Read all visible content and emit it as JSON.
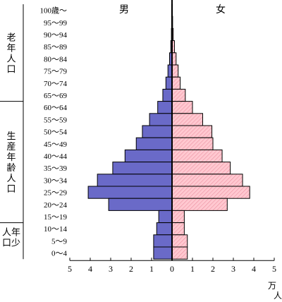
{
  "chart_data": {
    "type": "bar",
    "orientation": "horizontal-population-pyramid",
    "title": "",
    "xlabel": "",
    "unit": "万人",
    "xlim": [
      -5,
      5
    ],
    "x_ticks": [
      -5,
      -4,
      -3,
      -2,
      -1,
      0,
      1,
      2,
      3,
      4,
      5
    ],
    "x_tick_labels": [
      "5",
      "4",
      "3",
      "2",
      "1",
      "0",
      "1",
      "2",
      "3",
      "4",
      "5"
    ],
    "categories": [
      "100歳～",
      "95～99",
      "90～94",
      "85～89",
      "80～84",
      "75～79",
      "70～74",
      "65～69",
      "60～64",
      "55～59",
      "50～54",
      "45～49",
      "40～44",
      "35～39",
      "30～34",
      "25～29",
      "20～24",
      "15～19",
      "10～14",
      "5～9",
      "0～4"
    ],
    "series": [
      {
        "name": "男",
        "side": "left",
        "color": "#6a6ac8",
        "values": [
          0.02,
          0.02,
          0.03,
          0.06,
          0.12,
          0.2,
          0.3,
          0.45,
          0.7,
          1.1,
          1.45,
          1.75,
          2.3,
          2.9,
          3.65,
          4.1,
          3.1,
          0.65,
          0.75,
          0.9,
          0.9
        ]
      },
      {
        "name": "女",
        "side": "right",
        "color": "#ffc8d0",
        "values": [
          0.02,
          0.03,
          0.06,
          0.12,
          0.2,
          0.3,
          0.4,
          0.65,
          1.0,
          1.5,
          1.95,
          2.0,
          2.45,
          2.85,
          3.45,
          3.8,
          2.7,
          0.6,
          0.6,
          0.75,
          0.75
        ]
      }
    ],
    "groups": [
      {
        "label": "老年人口",
        "chars": [
          "老",
          "年",
          "人",
          "口"
        ],
        "from": "100歳～",
        "to": "65～69"
      },
      {
        "label": "生産年齢人口",
        "chars": [
          "生",
          "産",
          "年",
          "齢",
          "人",
          "口"
        ],
        "from": "60～64",
        "to": "15～19"
      },
      {
        "label": "年少人口",
        "chars": [
          "年",
          "少",
          "人",
          "口"
        ],
        "from": "10～14",
        "to": "0～4"
      }
    ],
    "grid": false,
    "legend": "none"
  }
}
